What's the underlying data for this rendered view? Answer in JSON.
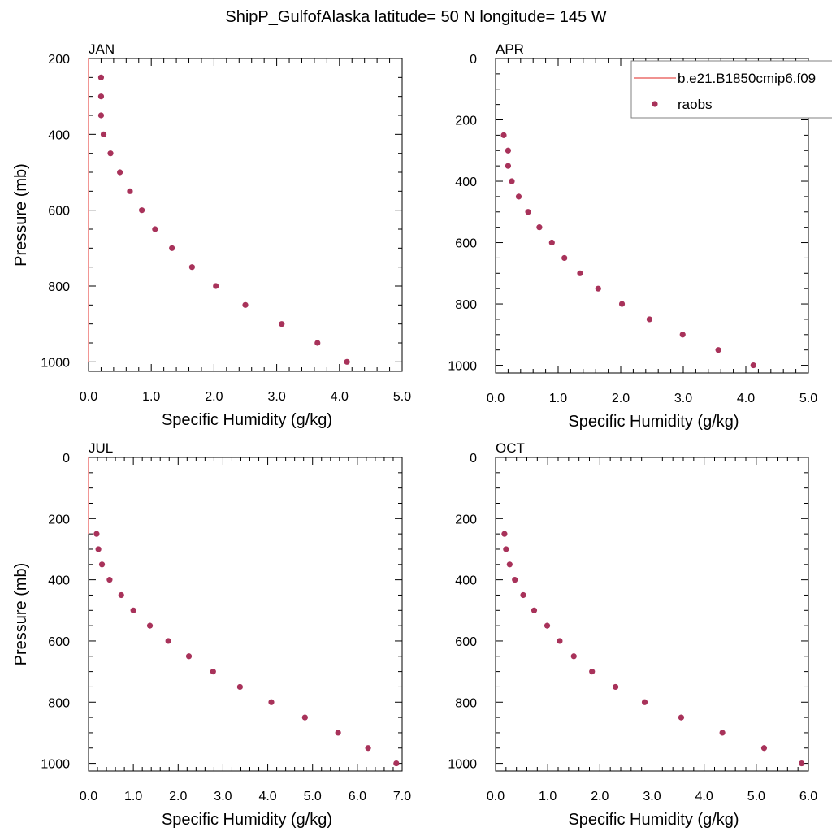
{
  "figure": {
    "title": "ShipP_GulfofAlaska  latitude= 50 N longitude= 145 W"
  },
  "colors": {
    "model_line": "#e8504e",
    "obs_marker": "#a8325a",
    "frame": "#000000",
    "background": "#ffffff"
  },
  "legend": {
    "items": [
      {
        "label": "b.e21.B1850cmip6.f09",
        "kind": "line"
      },
      {
        "label": "raobs",
        "kind": "marker"
      }
    ],
    "placement": "top-right of APR panel"
  },
  "chart_data": [
    {
      "type": "scatter",
      "title": "JAN",
      "xlabel": "Specific Humidity (g/kg)",
      "ylabel": "Pressure (mb)",
      "xlim": [
        0,
        5
      ],
      "ylim": [
        200,
        1025
      ],
      "y_inverted": true,
      "xticks": [
        "0.0",
        "1.0",
        "2.0",
        "3.0",
        "4.0",
        "5.0"
      ],
      "yticks": [
        "200",
        "400",
        "600",
        "800",
        "1000"
      ],
      "ytick_values": [
        200,
        400,
        600,
        800,
        1000
      ],
      "series": [
        {
          "name": "b.e21.B1850cmip6.f09",
          "kind": "line",
          "x": [
            0.0,
            0.0
          ],
          "y": [
            200,
            1000
          ]
        },
        {
          "name": "raobs",
          "kind": "marker",
          "x": [
            0.2,
            0.2,
            0.2,
            0.24,
            0.35,
            0.5,
            0.66,
            0.85,
            1.06,
            1.33,
            1.65,
            2.03,
            2.5,
            3.08,
            3.65,
            4.12
          ],
          "y": [
            250,
            300,
            350,
            400,
            450,
            500,
            550,
            600,
            650,
            700,
            750,
            800,
            850,
            900,
            950,
            1000
          ]
        }
      ]
    },
    {
      "type": "scatter",
      "title": "APR",
      "xlabel": "Specific Humidity (g/kg)",
      "ylabel": "",
      "xlim": [
        0,
        5
      ],
      "ylim": [
        0,
        1025
      ],
      "y_inverted": true,
      "xticks": [
        "0.0",
        "1.0",
        "2.0",
        "3.0",
        "4.0",
        "5.0"
      ],
      "yticks": [
        "0",
        "200",
        "400",
        "600",
        "800",
        "1000"
      ],
      "ytick_values": [
        0,
        200,
        400,
        600,
        800,
        1000
      ],
      "series": [
        {
          "name": "raobs",
          "kind": "marker",
          "x": [
            0.13,
            0.2,
            0.2,
            0.26,
            0.37,
            0.52,
            0.7,
            0.9,
            1.1,
            1.35,
            1.64,
            2.02,
            2.46,
            2.99,
            3.56,
            4.12
          ],
          "y": [
            250,
            300,
            350,
            400,
            450,
            500,
            550,
            600,
            650,
            700,
            750,
            800,
            850,
            900,
            950,
            1000
          ]
        }
      ]
    },
    {
      "type": "scatter",
      "title": "JUL",
      "xlabel": "Specific Humidity (g/kg)",
      "ylabel": "Pressure (mb)",
      "xlim": [
        0,
        7
      ],
      "ylim": [
        0,
        1025
      ],
      "y_inverted": true,
      "xticks": [
        "0.0",
        "1.0",
        "2.0",
        "3.0",
        "4.0",
        "5.0",
        "6.0",
        "7.0"
      ],
      "yticks": [
        "0",
        "200",
        "400",
        "600",
        "800",
        "1000"
      ],
      "ytick_values": [
        0,
        200,
        400,
        600,
        800,
        1000
      ],
      "series": [
        {
          "name": "b.e21.B1850cmip6.f09",
          "kind": "line",
          "x": [
            0.0,
            0.0
          ],
          "y": [
            0,
            250
          ]
        },
        {
          "name": "raobs",
          "kind": "marker",
          "x": [
            0.18,
            0.22,
            0.3,
            0.47,
            0.73,
            1.0,
            1.37,
            1.78,
            2.24,
            2.78,
            3.38,
            4.08,
            4.83,
            5.57,
            6.24,
            6.87
          ],
          "y": [
            250,
            300,
            350,
            400,
            450,
            500,
            550,
            600,
            650,
            700,
            750,
            800,
            850,
            900,
            950,
            1000
          ]
        }
      ]
    },
    {
      "type": "scatter",
      "title": "OCT",
      "xlabel": "Specific Humidity (g/kg)",
      "ylabel": "",
      "xlim": [
        0,
        6
      ],
      "ylim": [
        0,
        1025
      ],
      "y_inverted": true,
      "xticks": [
        "0.0",
        "1.0",
        "2.0",
        "3.0",
        "4.0",
        "5.0",
        "6.0"
      ],
      "yticks": [
        "0",
        "200",
        "400",
        "600",
        "800",
        "1000"
      ],
      "ytick_values": [
        0,
        200,
        400,
        600,
        800,
        1000
      ],
      "series": [
        {
          "name": "raobs",
          "kind": "marker",
          "x": [
            0.17,
            0.2,
            0.27,
            0.37,
            0.53,
            0.74,
            0.99,
            1.23,
            1.5,
            1.85,
            2.3,
            2.86,
            3.56,
            4.35,
            5.15,
            5.87
          ],
          "y": [
            250,
            300,
            350,
            400,
            450,
            500,
            550,
            600,
            650,
            700,
            750,
            800,
            850,
            900,
            950,
            1000
          ]
        }
      ]
    }
  ]
}
